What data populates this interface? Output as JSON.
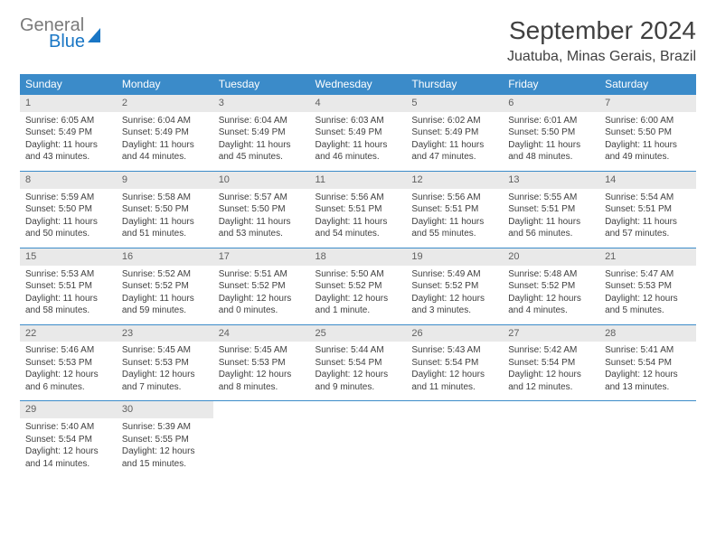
{
  "logo": {
    "part1": "General",
    "part2": "Blue"
  },
  "title": "September 2024",
  "location": "Juatuba, Minas Gerais, Brazil",
  "colors": {
    "header_bg": "#3b8bc9",
    "header_text": "#ffffff",
    "daynum_bg": "#e9e9e9",
    "rule": "#3b8bc9",
    "text": "#404040",
    "logo_gray": "#7a7a7a",
    "logo_blue": "#1976c5"
  },
  "weekdays": [
    "Sunday",
    "Monday",
    "Tuesday",
    "Wednesday",
    "Thursday",
    "Friday",
    "Saturday"
  ],
  "weeks": [
    [
      {
        "n": "1",
        "sr": "6:05 AM",
        "ss": "5:49 PM",
        "dl": "11 hours and 43 minutes."
      },
      {
        "n": "2",
        "sr": "6:04 AM",
        "ss": "5:49 PM",
        "dl": "11 hours and 44 minutes."
      },
      {
        "n": "3",
        "sr": "6:04 AM",
        "ss": "5:49 PM",
        "dl": "11 hours and 45 minutes."
      },
      {
        "n": "4",
        "sr": "6:03 AM",
        "ss": "5:49 PM",
        "dl": "11 hours and 46 minutes."
      },
      {
        "n": "5",
        "sr": "6:02 AM",
        "ss": "5:49 PM",
        "dl": "11 hours and 47 minutes."
      },
      {
        "n": "6",
        "sr": "6:01 AM",
        "ss": "5:50 PM",
        "dl": "11 hours and 48 minutes."
      },
      {
        "n": "7",
        "sr": "6:00 AM",
        "ss": "5:50 PM",
        "dl": "11 hours and 49 minutes."
      }
    ],
    [
      {
        "n": "8",
        "sr": "5:59 AM",
        "ss": "5:50 PM",
        "dl": "11 hours and 50 minutes."
      },
      {
        "n": "9",
        "sr": "5:58 AM",
        "ss": "5:50 PM",
        "dl": "11 hours and 51 minutes."
      },
      {
        "n": "10",
        "sr": "5:57 AM",
        "ss": "5:50 PM",
        "dl": "11 hours and 53 minutes."
      },
      {
        "n": "11",
        "sr": "5:56 AM",
        "ss": "5:51 PM",
        "dl": "11 hours and 54 minutes."
      },
      {
        "n": "12",
        "sr": "5:56 AM",
        "ss": "5:51 PM",
        "dl": "11 hours and 55 minutes."
      },
      {
        "n": "13",
        "sr": "5:55 AM",
        "ss": "5:51 PM",
        "dl": "11 hours and 56 minutes."
      },
      {
        "n": "14",
        "sr": "5:54 AM",
        "ss": "5:51 PM",
        "dl": "11 hours and 57 minutes."
      }
    ],
    [
      {
        "n": "15",
        "sr": "5:53 AM",
        "ss": "5:51 PM",
        "dl": "11 hours and 58 minutes."
      },
      {
        "n": "16",
        "sr": "5:52 AM",
        "ss": "5:52 PM",
        "dl": "11 hours and 59 minutes."
      },
      {
        "n": "17",
        "sr": "5:51 AM",
        "ss": "5:52 PM",
        "dl": "12 hours and 0 minutes."
      },
      {
        "n": "18",
        "sr": "5:50 AM",
        "ss": "5:52 PM",
        "dl": "12 hours and 1 minute."
      },
      {
        "n": "19",
        "sr": "5:49 AM",
        "ss": "5:52 PM",
        "dl": "12 hours and 3 minutes."
      },
      {
        "n": "20",
        "sr": "5:48 AM",
        "ss": "5:52 PM",
        "dl": "12 hours and 4 minutes."
      },
      {
        "n": "21",
        "sr": "5:47 AM",
        "ss": "5:53 PM",
        "dl": "12 hours and 5 minutes."
      }
    ],
    [
      {
        "n": "22",
        "sr": "5:46 AM",
        "ss": "5:53 PM",
        "dl": "12 hours and 6 minutes."
      },
      {
        "n": "23",
        "sr": "5:45 AM",
        "ss": "5:53 PM",
        "dl": "12 hours and 7 minutes."
      },
      {
        "n": "24",
        "sr": "5:45 AM",
        "ss": "5:53 PM",
        "dl": "12 hours and 8 minutes."
      },
      {
        "n": "25",
        "sr": "5:44 AM",
        "ss": "5:54 PM",
        "dl": "12 hours and 9 minutes."
      },
      {
        "n": "26",
        "sr": "5:43 AM",
        "ss": "5:54 PM",
        "dl": "12 hours and 11 minutes."
      },
      {
        "n": "27",
        "sr": "5:42 AM",
        "ss": "5:54 PM",
        "dl": "12 hours and 12 minutes."
      },
      {
        "n": "28",
        "sr": "5:41 AM",
        "ss": "5:54 PM",
        "dl": "12 hours and 13 minutes."
      }
    ],
    [
      {
        "n": "29",
        "sr": "5:40 AM",
        "ss": "5:54 PM",
        "dl": "12 hours and 14 minutes."
      },
      {
        "n": "30",
        "sr": "5:39 AM",
        "ss": "5:55 PM",
        "dl": "12 hours and 15 minutes."
      },
      null,
      null,
      null,
      null,
      null
    ]
  ],
  "labels": {
    "sunrise": "Sunrise:",
    "sunset": "Sunset:",
    "daylight": "Daylight:"
  }
}
